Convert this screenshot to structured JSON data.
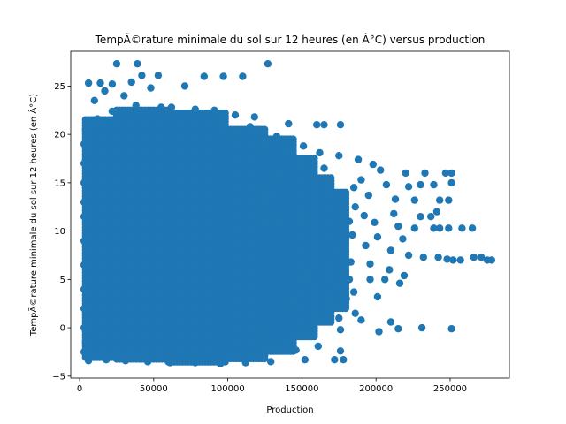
{
  "chart_data": {
    "type": "scatter",
    "title": "TempÃ©rature minimale du sol sur 12 heures (en Â°C) versus production",
    "xlabel": "Production",
    "ylabel": "TempÃ©rature minimale du sol sur 12 heures (en Â°C)",
    "xlim": [
      -6000,
      290000
    ],
    "ylim": [
      -5.2,
      28.6
    ],
    "xticks": [
      0,
      50000,
      100000,
      150000,
      200000,
      250000
    ],
    "xtick_labels": [
      "0",
      "50000",
      "100000",
      "150000",
      "200000",
      "250000"
    ],
    "yticks": [
      -5,
      0,
      5,
      10,
      15,
      20,
      25
    ],
    "ytick_labels": [
      "−5",
      "0",
      "5",
      "10",
      "15",
      "20",
      "25"
    ],
    "grid": false,
    "legend": "none",
    "marker_color": "#1f77b4",
    "series": [
      {
        "points": [
          [
            25000,
            27.3
          ],
          [
            39000,
            27.3
          ],
          [
            127000,
            27.3
          ],
          [
            84000,
            26.0
          ],
          [
            97000,
            26.0
          ],
          [
            110000,
            26.0
          ],
          [
            42000,
            26.1
          ],
          [
            53000,
            26.1
          ],
          [
            6000,
            25.3
          ],
          [
            14000,
            25.3
          ],
          [
            22000,
            25.2
          ],
          [
            35000,
            25.4
          ],
          [
            71000,
            25.0
          ],
          [
            48000,
            24.8
          ],
          [
            17000,
            24.5
          ],
          [
            30000,
            24.0
          ],
          [
            10000,
            23.5
          ],
          [
            62000,
            22.8
          ],
          [
            91000,
            22.5
          ],
          [
            118000,
            21.8
          ],
          [
            141000,
            21.1
          ],
          [
            160000,
            21.0
          ],
          [
            165000,
            21.0
          ],
          [
            176000,
            21.0
          ],
          [
            121000,
            20.5
          ],
          [
            133000,
            19.8
          ],
          [
            151000,
            18.8
          ],
          [
            162000,
            18.1
          ],
          [
            175000,
            17.8
          ],
          [
            188000,
            17.4
          ],
          [
            198000,
            16.9
          ],
          [
            203000,
            16.3
          ],
          [
            220000,
            16.0
          ],
          [
            233000,
            16.0
          ],
          [
            247000,
            16.0
          ],
          [
            251000,
            16.0
          ],
          [
            190000,
            15.3
          ],
          [
            207000,
            14.8
          ],
          [
            222000,
            14.6
          ],
          [
            230000,
            14.8
          ],
          [
            239000,
            14.8
          ],
          [
            251000,
            15.0
          ],
          [
            195000,
            13.7
          ],
          [
            213000,
            13.3
          ],
          [
            226000,
            13.2
          ],
          [
            243000,
            13.2
          ],
          [
            249000,
            13.2
          ],
          [
            186000,
            12.5
          ],
          [
            212000,
            11.8
          ],
          [
            230000,
            11.5
          ],
          [
            237000,
            11.5
          ],
          [
            241000,
            12.0
          ],
          [
            182000,
            11.0
          ],
          [
            199000,
            10.9
          ],
          [
            215000,
            10.5
          ],
          [
            226000,
            10.3
          ],
          [
            239000,
            10.3
          ],
          [
            243000,
            10.3
          ],
          [
            249000,
            10.3
          ],
          [
            258000,
            10.3
          ],
          [
            265000,
            10.3
          ],
          [
            184000,
            9.6
          ],
          [
            201000,
            9.4
          ],
          [
            218000,
            9.2
          ],
          [
            193000,
            8.5
          ],
          [
            210000,
            8.0
          ],
          [
            222000,
            7.5
          ],
          [
            232000,
            7.3
          ],
          [
            242000,
            7.3
          ],
          [
            248000,
            7.1
          ],
          [
            252000,
            7.0
          ],
          [
            257000,
            7.0
          ],
          [
            266000,
            7.3
          ],
          [
            271000,
            7.3
          ],
          [
            275000,
            7.0
          ],
          [
            278000,
            7.0
          ],
          [
            183000,
            6.8
          ],
          [
            196000,
            6.6
          ],
          [
            209000,
            6.0
          ],
          [
            219000,
            5.4
          ],
          [
            182000,
            5.0
          ],
          [
            196000,
            5.0
          ],
          [
            206000,
            5.0
          ],
          [
            216000,
            4.6
          ],
          [
            175000,
            4.2
          ],
          [
            185000,
            3.7
          ],
          [
            201000,
            3.2
          ],
          [
            170000,
            2.5
          ],
          [
            186000,
            1.5
          ],
          [
            175000,
            1.0
          ],
          [
            165000,
            0.8
          ],
          [
            190000,
            0.8
          ],
          [
            210000,
            0.6
          ],
          [
            215000,
            -0.1
          ],
          [
            231000,
            0.0
          ],
          [
            251000,
            -0.1
          ],
          [
            176000,
            -0.2
          ],
          [
            202000,
            -0.4
          ],
          [
            141000,
            -1.5
          ],
          [
            161000,
            -1.9
          ],
          [
            176000,
            -2.4
          ],
          [
            146000,
            -2.3
          ],
          [
            152000,
            -3.3
          ],
          [
            172000,
            -3.3
          ],
          [
            178000,
            -3.3
          ],
          [
            129000,
            -3.5
          ],
          [
            112000,
            -3.6
          ],
          [
            95000,
            -3.7
          ],
          [
            78000,
            -3.6
          ],
          [
            61000,
            -3.6
          ],
          [
            46000,
            -3.5
          ],
          [
            31000,
            -3.4
          ],
          [
            18000,
            -3.3
          ],
          [
            6000,
            -3.4
          ],
          [
            3000,
            -2.5
          ],
          [
            4000,
            -1.5
          ],
          [
            3000,
            0.0
          ],
          [
            3000,
            2.0
          ],
          [
            3000,
            4.0
          ],
          [
            3000,
            6.5
          ],
          [
            3000,
            9.0
          ],
          [
            3000,
            11.5
          ],
          [
            3000,
            13.0
          ],
          [
            3000,
            15.0
          ],
          [
            3000,
            17.0
          ],
          [
            3000,
            19.0
          ],
          [
            4000,
            20.5
          ],
          [
            150000,
            11.0
          ],
          [
            160000,
            9.0
          ],
          [
            155000,
            5.5
          ],
          [
            145000,
            2.8
          ],
          [
            135000,
            16.0
          ],
          [
            128000,
            13.5
          ],
          [
            170000,
            14.0
          ],
          [
            165000,
            16.5
          ],
          [
            158000,
            12.8
          ],
          [
            172000,
            8.2
          ],
          [
            168000,
            6.2
          ],
          [
            178000,
            12.2
          ],
          [
            180000,
            3.0
          ],
          [
            185000,
            14.5
          ],
          [
            192000,
            11.6
          ],
          [
            140000,
            18.0
          ],
          [
            125000,
            19.0
          ],
          [
            115000,
            20.8
          ],
          [
            105000,
            22.0
          ],
          [
            78000,
            22.6
          ],
          [
            55000,
            22.8
          ],
          [
            38000,
            23.0
          ],
          [
            22000,
            22.4
          ],
          [
            12000,
            21.6
          ]
        ]
      }
    ]
  }
}
